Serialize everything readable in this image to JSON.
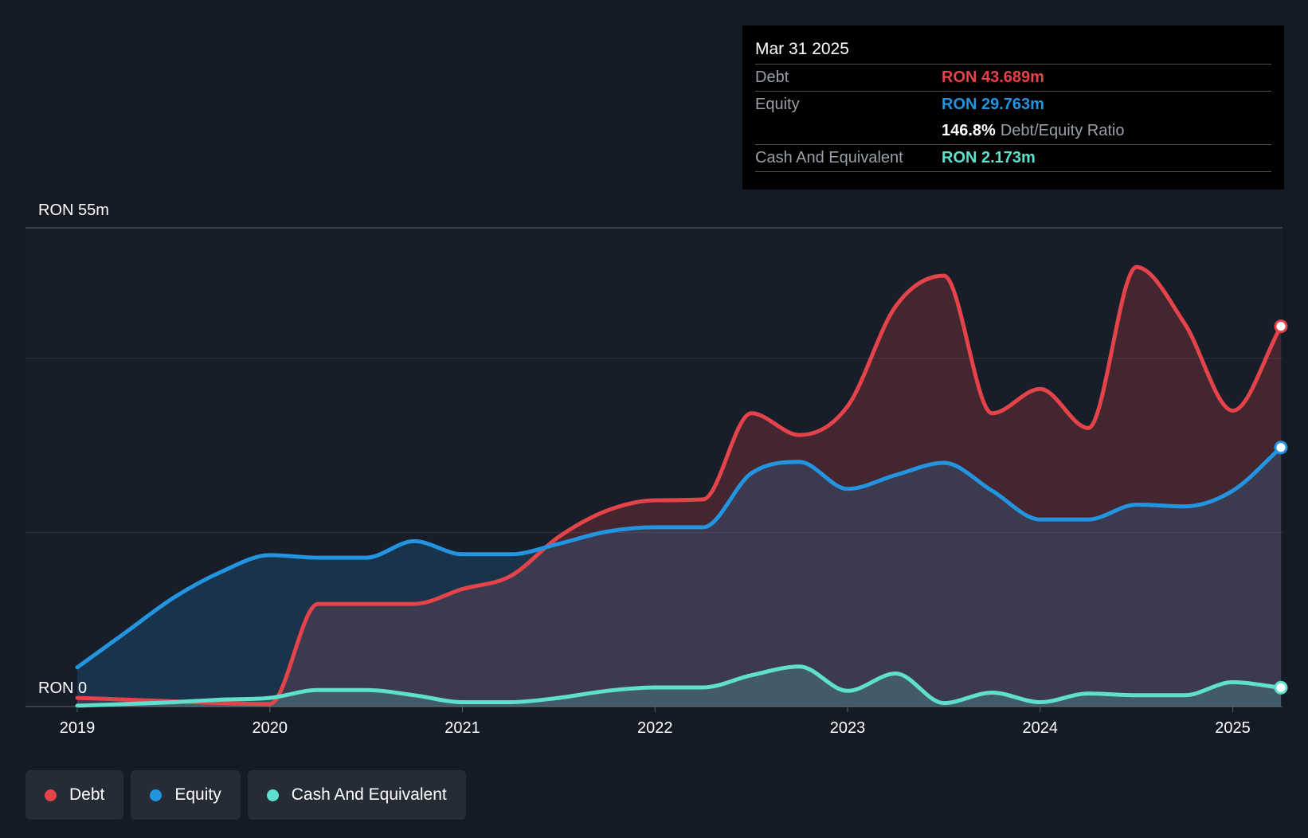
{
  "tooltip": {
    "date": "Mar 31 2025",
    "debt_label": "Debt",
    "debt_value": "RON 43.689m",
    "equity_label": "Equity",
    "equity_value": "RON 29.763m",
    "ratio_value": "146.8%",
    "ratio_label": "Debt/Equity Ratio",
    "cash_label": "Cash And Equivalent",
    "cash_value": "RON 2.173m"
  },
  "legend": {
    "items": [
      {
        "label": "Debt",
        "color": "#e5434a"
      },
      {
        "label": "Equity",
        "color": "#2394e0"
      },
      {
        "label": "Cash And Equivalent",
        "color": "#5ee0cc"
      }
    ]
  },
  "colors": {
    "debt": "#e5434a",
    "equity": "#2394e0",
    "cash": "#5ee0cc",
    "background": "#151b24"
  },
  "chart_data": {
    "type": "area",
    "title": "",
    "xlabel": "",
    "ylabel": "",
    "y_top_label": "RON 55m",
    "y_bottom_label": "RON 0",
    "ylim": [
      0,
      55
    ],
    "xlim": [
      2019.0,
      2025.25
    ],
    "x_ticks": [
      "2019",
      "2020",
      "2021",
      "2022",
      "2023",
      "2024",
      "2025"
    ],
    "x_tick_values": [
      2019,
      2020,
      2021,
      2022,
      2023,
      2024,
      2025
    ],
    "grid": true,
    "series": [
      {
        "name": "Debt",
        "x": [
          2019.0,
          2019.25,
          2019.5,
          2019.75,
          2020.0,
          2020.25,
          2020.5,
          2020.75,
          2021.0,
          2021.25,
          2021.5,
          2021.75,
          2022.0,
          2022.25,
          2022.5,
          2022.75,
          2023.0,
          2023.25,
          2023.5,
          2023.75,
          2024.0,
          2024.25,
          2024.5,
          2024.75,
          2025.0,
          2025.25
        ],
        "values": [
          1.0,
          0.8,
          0.6,
          0.4,
          0.3,
          11.8,
          11.8,
          11.8,
          13.5,
          15.0,
          19.5,
          22.5,
          23.7,
          23.8,
          33.7,
          31.2,
          34.5,
          46.0,
          49.5,
          33.7,
          36.5,
          32.0,
          50.5,
          44.0,
          34.0,
          43.689
        ]
      },
      {
        "name": "Equity",
        "x": [
          2019.0,
          2019.25,
          2019.5,
          2019.75,
          2020.0,
          2020.25,
          2020.5,
          2020.75,
          2021.0,
          2021.25,
          2021.5,
          2021.75,
          2022.0,
          2022.25,
          2022.5,
          2022.75,
          2023.0,
          2023.25,
          2023.5,
          2023.75,
          2024.0,
          2024.25,
          2024.5,
          2024.75,
          2025.0,
          2025.25
        ],
        "values": [
          4.5,
          8.5,
          12.5,
          15.5,
          17.4,
          17.1,
          17.1,
          19.0,
          17.5,
          17.5,
          18.7,
          20.1,
          20.6,
          20.6,
          26.8,
          28.1,
          25.0,
          26.6,
          28.0,
          24.8,
          21.5,
          21.5,
          23.2,
          23.0,
          24.8,
          29.763
        ]
      },
      {
        "name": "Cash And Equivalent",
        "x": [
          2019.0,
          2019.25,
          2019.5,
          2019.75,
          2020.0,
          2020.25,
          2020.5,
          2020.75,
          2021.0,
          2021.25,
          2021.5,
          2021.75,
          2022.0,
          2022.25,
          2022.5,
          2022.75,
          2023.0,
          2023.25,
          2023.5,
          2023.75,
          2024.0,
          2024.25,
          2024.5,
          2024.75,
          2025.0,
          2025.25
        ],
        "values": [
          0.1,
          0.3,
          0.5,
          0.8,
          1.0,
          1.9,
          1.9,
          1.3,
          0.5,
          0.5,
          1.0,
          1.8,
          2.2,
          2.2,
          3.6,
          4.6,
          1.8,
          3.8,
          0.4,
          1.6,
          0.5,
          1.5,
          1.3,
          1.3,
          2.8,
          2.173
        ]
      }
    ]
  }
}
